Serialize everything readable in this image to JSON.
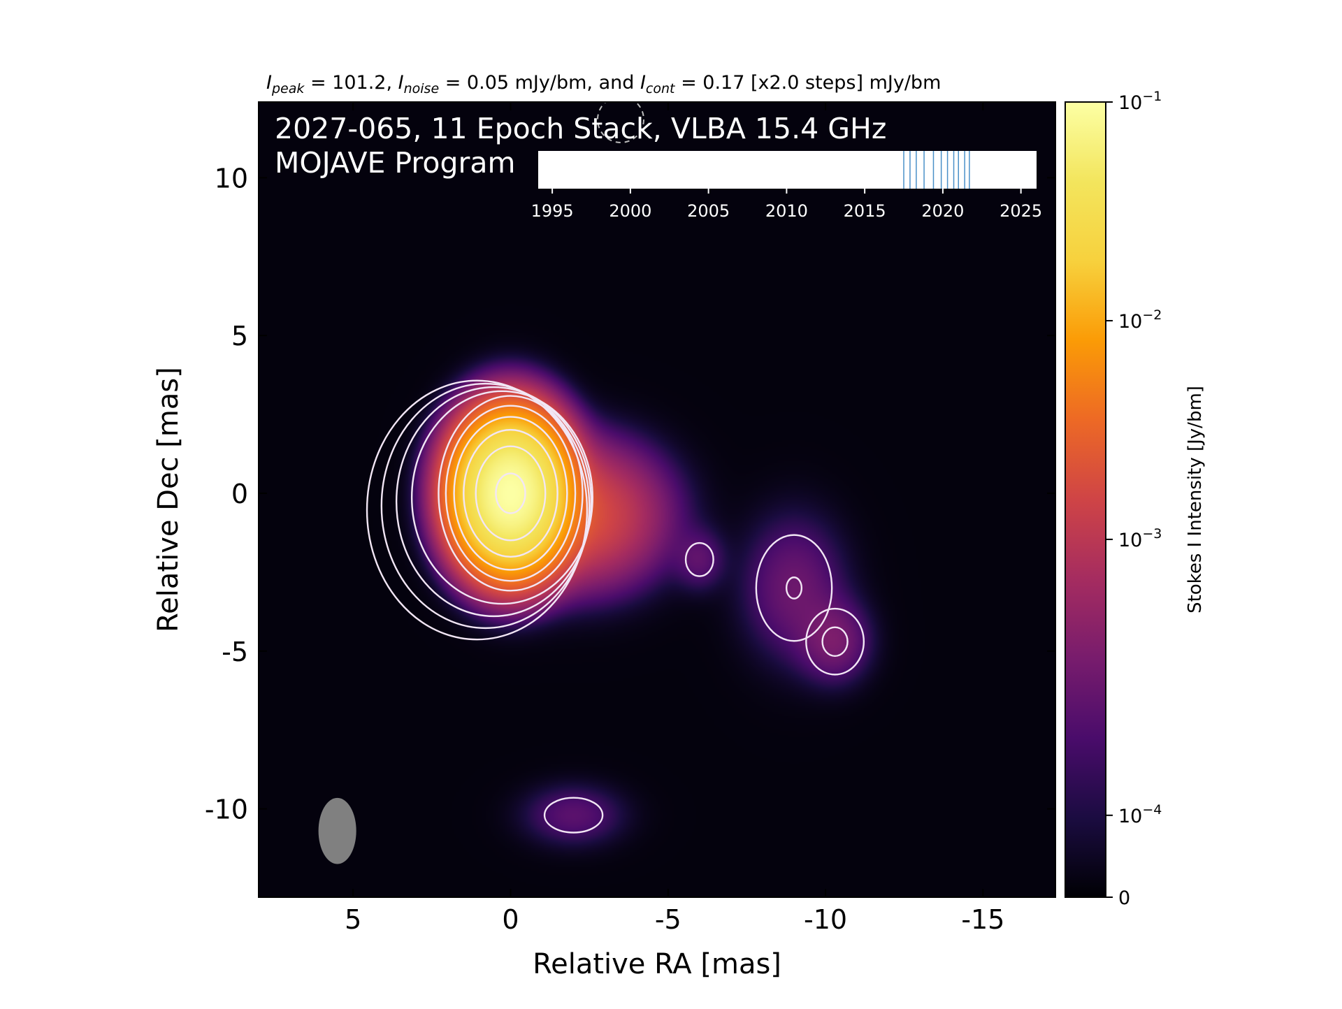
{
  "chart_data": {
    "type": "heatmap",
    "header": {
      "peak_sym": "I",
      "peak_sub": "peak",
      "peak_val": " = 101.2, ",
      "noise_sym": "I",
      "noise_sub": "noise",
      "noise_val": " = 0.05 mJy/bm, and ",
      "cont_sym": "I",
      "cont_sub": "cont",
      "cont_val": " = 0.17 [x2.0 steps] mJy/bm"
    },
    "title_line1": "2027-065, 11 Epoch Stack, VLBA 15.4 GHz",
    "title_line2": "MOJAVE Program",
    "xlabel": "Relative RA [mas]",
    "ylabel": "Relative Dec [mas]",
    "xlim": [
      8,
      -17.3
    ],
    "ylim": [
      -12.8,
      12.4
    ],
    "xticks": [
      5,
      0,
      -5,
      -10,
      -15
    ],
    "yticks": [
      10,
      5,
      0,
      -5,
      -10
    ],
    "xtick_labels": [
      "5",
      "0",
      "-5",
      "-10",
      "-15"
    ],
    "ytick_labels": [
      "10",
      "5",
      "0",
      "-5",
      "-10"
    ],
    "colorbar": {
      "label": "Stokes I Intensity [Jy/bm]",
      "colormap": "inferno",
      "ticks": [
        {
          "base": "10",
          "exp": "−1",
          "frac": 1.0
        },
        {
          "base": "10",
          "exp": "−2",
          "frac": 0.725
        },
        {
          "base": "10",
          "exp": "−3",
          "frac": 0.45
        },
        {
          "base": "10",
          "exp": "−4",
          "frac": 0.103
        },
        {
          "base": "0",
          "exp": "",
          "frac": 0.0
        }
      ]
    },
    "beam": {
      "x": 5.5,
      "y": -10.7,
      "major_mas": 2.1,
      "minor_mas": 1.2,
      "color": "#808080"
    },
    "components": [
      {
        "x": 0.0,
        "y": 0.0,
        "peak": 0.1012,
        "sx": 0.85,
        "sy": 1.15,
        "type": "core"
      },
      {
        "x": -2.3,
        "y": -0.7,
        "peak": 0.0025,
        "sx": 1.4,
        "sy": 1.2,
        "type": "jet"
      },
      {
        "x": -6.0,
        "y": -2.1,
        "peak": 0.00025,
        "sx": 0.5,
        "sy": 0.6,
        "type": "knot"
      },
      {
        "x": -9.0,
        "y": -3.0,
        "peak": 0.00035,
        "sx": 1.0,
        "sy": 1.4,
        "type": "knot"
      },
      {
        "x": -10.3,
        "y": -4.7,
        "peak": 0.0004,
        "sx": 0.7,
        "sy": 0.8,
        "type": "knot"
      },
      {
        "x": -2.0,
        "y": -10.2,
        "peak": 0.00026,
        "sx": 1.0,
        "sy": 0.6,
        "type": "blob"
      }
    ],
    "contour_levels_mJy": [
      0.17,
      0.34,
      0.68,
      1.36,
      2.72,
      5.44,
      10.88,
      21.76,
      43.52,
      87.04
    ],
    "epoch_timeline": {
      "axis_ticks": [
        1995,
        2000,
        2005,
        2010,
        2015,
        2020,
        2025
      ],
      "xlim": [
        1994.1,
        2026.0
      ],
      "epochs": [
        2017.5,
        2017.9,
        2018.3,
        2018.8,
        2019.4,
        2019.9,
        2020.3,
        2020.7,
        2021.0,
        2021.4,
        2021.7
      ],
      "epoch_color": "#4a90c8"
    },
    "colors": {
      "background": "#000004",
      "contour": "#f2e6f5"
    }
  }
}
